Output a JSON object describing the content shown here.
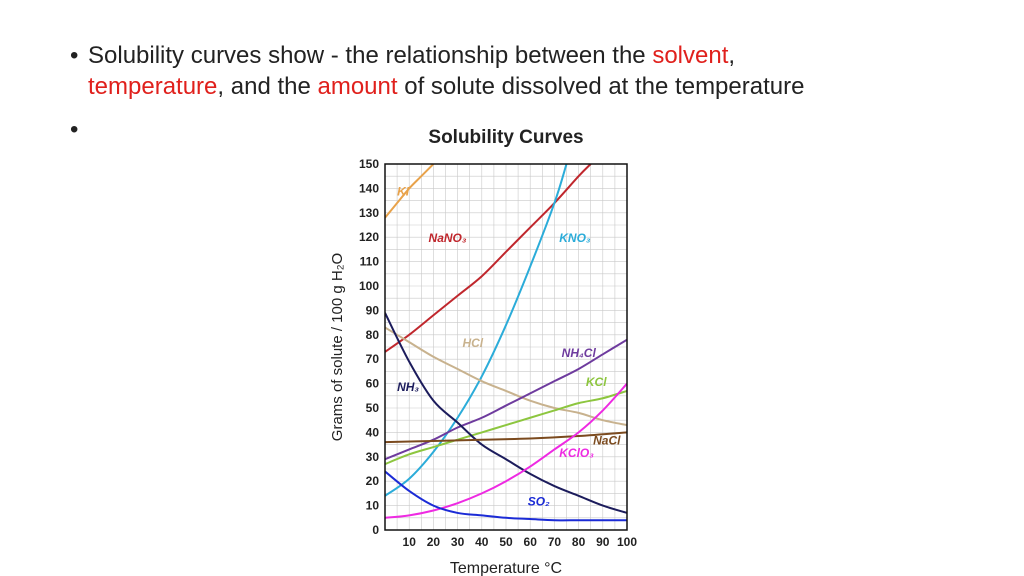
{
  "slide": {
    "bullet_1": {
      "t1": "Solubility curves show   - the relationship between the ",
      "w_solvent": "solvent",
      "t2": ",",
      "w_temperature": "temperature",
      "t3": ", and the ",
      "w_amount": "amount",
      "t4": " of solute dissolved at the temperature"
    },
    "bullet_2": ""
  },
  "colors": {
    "highlight": "#e0201c",
    "text": "#222222"
  },
  "chart_data": {
    "type": "line",
    "title": "Solubility Curves",
    "xlabel": "Temperature °C",
    "ylabel": "Grams of solute / 100 g H₂O",
    "xlim": [
      0,
      100
    ],
    "ylim": [
      0,
      150
    ],
    "x_ticks": [
      10,
      20,
      30,
      40,
      50,
      60,
      70,
      80,
      90,
      100
    ],
    "y_ticks": [
      0,
      10,
      20,
      30,
      40,
      50,
      60,
      70,
      80,
      90,
      100,
      110,
      120,
      130,
      140,
      150
    ],
    "grid": true,
    "series": [
      {
        "name": "KI",
        "color": "#e8a24a",
        "points": [
          [
            0,
            128
          ],
          [
            5,
            134
          ],
          [
            10,
            140
          ],
          [
            15,
            145
          ],
          [
            20,
            150
          ]
        ]
      },
      {
        "name": "NaNO₃",
        "color": "#c0272d",
        "points": [
          [
            0,
            73
          ],
          [
            10,
            80
          ],
          [
            20,
            88
          ],
          [
            30,
            96
          ],
          [
            40,
            104
          ],
          [
            50,
            114
          ],
          [
            60,
            124
          ],
          [
            70,
            134
          ],
          [
            80,
            145
          ],
          [
            85,
            150
          ]
        ]
      },
      {
        "name": "KNO₃",
        "color": "#2bacd9",
        "points": [
          [
            0,
            14
          ],
          [
            10,
            21
          ],
          [
            20,
            32
          ],
          [
            30,
            46
          ],
          [
            40,
            63
          ],
          [
            50,
            84
          ],
          [
            60,
            108
          ],
          [
            70,
            134
          ],
          [
            75,
            150
          ]
        ]
      },
      {
        "name": "HCl",
        "color": "#c8b28e",
        "points": [
          [
            0,
            83
          ],
          [
            10,
            77
          ],
          [
            20,
            71
          ],
          [
            30,
            66
          ],
          [
            40,
            61
          ],
          [
            50,
            57
          ],
          [
            60,
            53
          ],
          [
            70,
            50
          ],
          [
            80,
            48
          ],
          [
            90,
            45
          ],
          [
            100,
            43
          ]
        ]
      },
      {
        "name": "NH₄Cl",
        "color": "#6e3b9e",
        "points": [
          [
            0,
            29
          ],
          [
            10,
            33
          ],
          [
            20,
            37
          ],
          [
            30,
            42
          ],
          [
            40,
            46
          ],
          [
            50,
            51
          ],
          [
            60,
            56
          ],
          [
            70,
            61
          ],
          [
            80,
            66
          ],
          [
            90,
            72
          ],
          [
            100,
            78
          ]
        ]
      },
      {
        "name": "KCl",
        "color": "#8dc63f",
        "points": [
          [
            0,
            27
          ],
          [
            10,
            31
          ],
          [
            20,
            34
          ],
          [
            30,
            37
          ],
          [
            40,
            40
          ],
          [
            50,
            43
          ],
          [
            60,
            46
          ],
          [
            70,
            49
          ],
          [
            80,
            52
          ],
          [
            90,
            54
          ],
          [
            100,
            57
          ]
        ]
      },
      {
        "name": "NH₃",
        "color": "#1c1c5c",
        "points": [
          [
            0,
            89
          ],
          [
            10,
            69
          ],
          [
            20,
            53
          ],
          [
            30,
            44
          ],
          [
            40,
            35
          ],
          [
            50,
            29
          ],
          [
            60,
            23
          ],
          [
            70,
            18
          ],
          [
            80,
            14
          ],
          [
            90,
            10
          ],
          [
            100,
            7
          ]
        ]
      },
      {
        "name": "NaCl",
        "color": "#7b4a1e",
        "points": [
          [
            0,
            36
          ],
          [
            20,
            36.5
          ],
          [
            40,
            37
          ],
          [
            60,
            37.5
          ],
          [
            80,
            38.5
          ],
          [
            100,
            40
          ]
        ]
      },
      {
        "name": "KClO₃",
        "color": "#ee2ae2",
        "points": [
          [
            0,
            5
          ],
          [
            10,
            6
          ],
          [
            20,
            8
          ],
          [
            30,
            11
          ],
          [
            40,
            15
          ],
          [
            50,
            20
          ],
          [
            60,
            26
          ],
          [
            70,
            33
          ],
          [
            80,
            40
          ],
          [
            90,
            49
          ],
          [
            100,
            60
          ]
        ]
      },
      {
        "name": "SO₂",
        "color": "#1b2bd6",
        "points": [
          [
            0,
            24
          ],
          [
            10,
            16
          ],
          [
            20,
            10
          ],
          [
            30,
            7
          ],
          [
            40,
            6
          ],
          [
            50,
            5
          ],
          [
            60,
            4.5
          ],
          [
            70,
            4
          ],
          [
            80,
            4
          ],
          [
            90,
            4
          ],
          [
            100,
            4
          ]
        ]
      }
    ],
    "labels": [
      {
        "series": "KI",
        "text": "KI",
        "x": 5,
        "y": 137
      },
      {
        "series": "NaNO₃",
        "text": "NaNO₃",
        "x": 18,
        "y": 118
      },
      {
        "series": "KNO₃",
        "text": "KNO₃",
        "x": 72,
        "y": 118
      },
      {
        "series": "HCl",
        "text": "HCl",
        "x": 32,
        "y": 75
      },
      {
        "series": "NH₄Cl",
        "text": "NH₄Cl",
        "x": 73,
        "y": 71
      },
      {
        "series": "KCl",
        "text": "KCl",
        "x": 83,
        "y": 59
      },
      {
        "series": "NH₃",
        "text": "NH₃",
        "x": 5,
        "y": 57
      },
      {
        "series": "NaCl",
        "text": "NaCl",
        "x": 86,
        "y": 35
      },
      {
        "series": "KClO₃",
        "text": "KClO₃",
        "x": 72,
        "y": 30
      },
      {
        "series": "SO₂",
        "text": "SO₂",
        "x": 59,
        "y": 10
      }
    ]
  }
}
